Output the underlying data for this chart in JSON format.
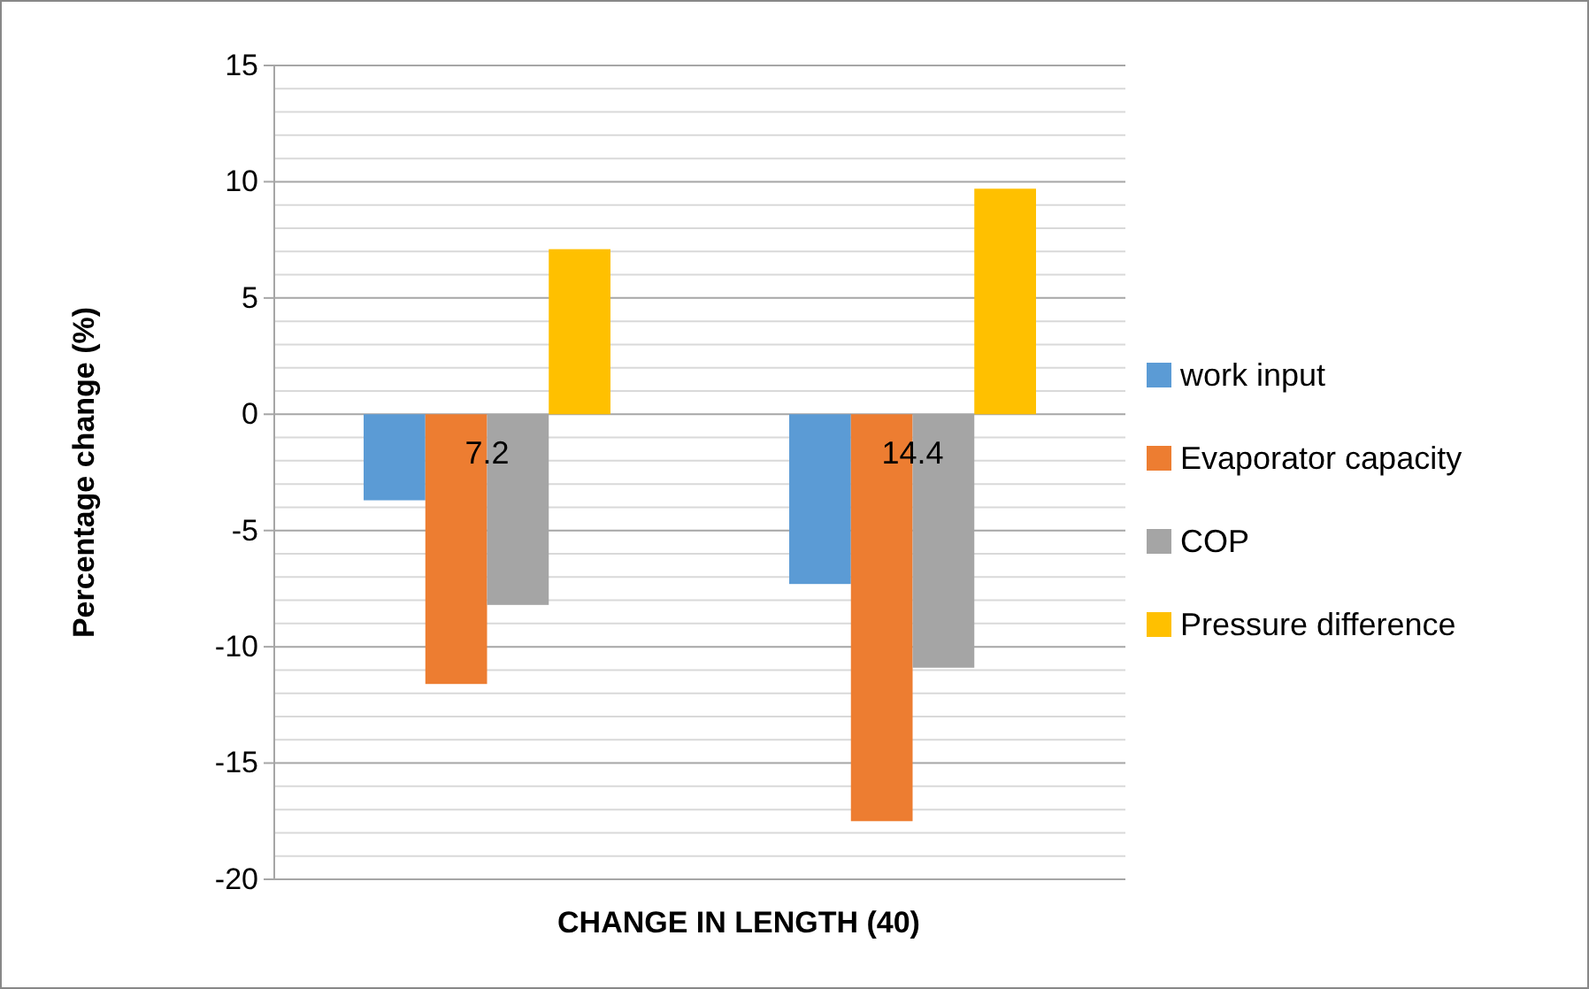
{
  "chart_data": {
    "type": "bar",
    "xlabel": "CHANGE IN LENGTH (40)",
    "ylabel": "Percentage change (%)",
    "categories": [
      "7.2",
      "14.4"
    ],
    "series": [
      {
        "name": "work input",
        "color": "#5b9bd5",
        "values": [
          -3.7,
          -7.3
        ]
      },
      {
        "name": "Evaporator capacity",
        "color": "#ed7d31",
        "values": [
          -11.6,
          -17.5
        ]
      },
      {
        "name": "COP",
        "color": "#a5a5a5",
        "values": [
          -8.2,
          -10.9
        ]
      },
      {
        "name": "Pressure difference",
        "color": "#ffc000",
        "values": [
          7.1,
          9.7
        ]
      }
    ],
    "ylim": [
      -20,
      15
    ],
    "yticks": [
      -20,
      {
        "value": -19,
        "label": null
      },
      {
        "value": -18,
        "label": null
      },
      {
        "value": -17,
        "label": null
      },
      {
        "value": -16,
        "label": null
      },
      -15,
      {
        "value": -14,
        "label": null
      },
      {
        "value": -13,
        "label": null
      },
      {
        "value": -12,
        "label": null
      },
      {
        "value": -11,
        "label": null
      },
      -10,
      {
        "value": -9,
        "label": null
      },
      {
        "value": -8,
        "label": null
      },
      {
        "value": -7,
        "label": null
      },
      {
        "value": -6,
        "label": null
      },
      -5,
      {
        "value": -4,
        "label": null
      },
      {
        "value": -3,
        "label": null
      },
      {
        "value": -2,
        "label": null
      },
      {
        "value": -1,
        "label": null
      },
      0,
      {
        "value": 1,
        "label": null
      },
      {
        "value": 2,
        "label": null
      },
      {
        "value": 3,
        "label": null
      },
      {
        "value": 4,
        "label": null
      },
      5,
      {
        "value": 6,
        "label": null
      },
      {
        "value": 7,
        "label": null
      },
      {
        "value": 8,
        "label": null
      },
      {
        "value": 9,
        "label": null
      },
      10,
      {
        "value": 11,
        "label": null
      },
      {
        "value": 12,
        "label": null
      },
      {
        "value": 13,
        "label": null
      },
      {
        "value": 14,
        "label": null
      },
      15
    ],
    "grid": true,
    "legend": "right"
  }
}
